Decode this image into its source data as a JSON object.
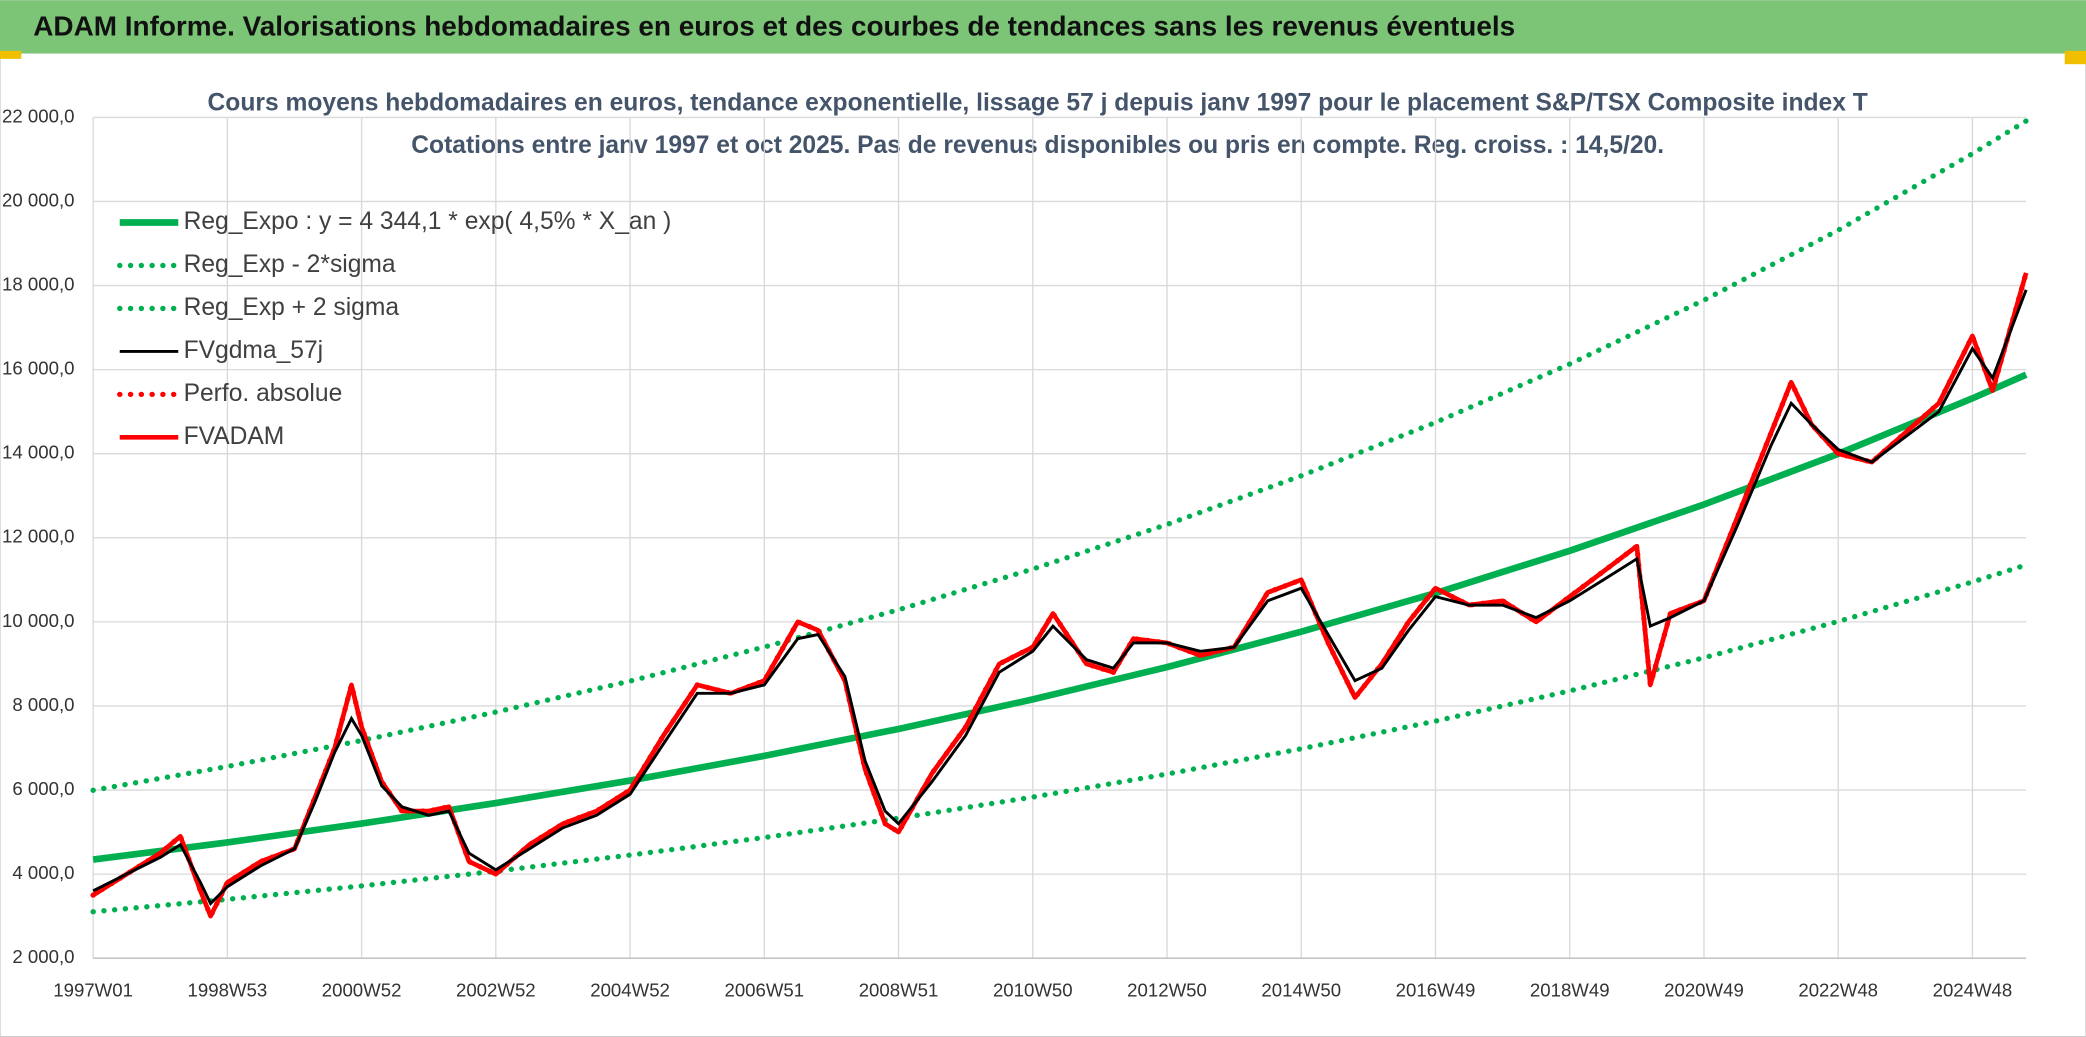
{
  "chart_data": {
    "type": "line",
    "header": "ADAM Informe. Valorisations hebdomadaires en euros et des courbes de tendances sans les revenus éventuels",
    "title": "Cours moyens hebdomadaires en euros, tendance exponentielle, lissage 57 j depuis janv 1997 pour le placement S&P/TSX Composite index T",
    "subtitle": "Cotations entre janv 1997 et oct 2025. Pas de revenus disponibles ou pris en compte. Reg. croiss. : 14,5/20.",
    "x": [
      1997.0,
      1997.5,
      1998.0,
      1998.3,
      1998.6,
      1998.75,
      1999.0,
      1999.5,
      2000.0,
      2000.3,
      2000.6,
      2000.85,
      2001.0,
      2001.3,
      2001.6,
      2002.0,
      2002.3,
      2002.6,
      2003.0,
      2003.5,
      2004.0,
      2004.5,
      2005.0,
      2005.5,
      2006.0,
      2006.5,
      2007.0,
      2007.5,
      2007.8,
      2008.2,
      2008.5,
      2008.8,
      2009.0,
      2009.5,
      2010.0,
      2010.5,
      2011.0,
      2011.3,
      2011.8,
      2012.2,
      2012.5,
      2013.0,
      2013.5,
      2014.0,
      2014.5,
      2015.0,
      2015.4,
      2015.8,
      2016.2,
      2016.6,
      2017.0,
      2017.5,
      2018.0,
      2018.5,
      2019.0,
      2019.5,
      2020.0,
      2020.2,
      2020.5,
      2021.0,
      2021.5,
      2022.0,
      2022.3,
      2022.6,
      2023.0,
      2023.5,
      2024.0,
      2024.5,
      2025.0,
      2025.3,
      2025.8
    ],
    "series": [
      {
        "name": "Reg_Expo : y = 4 344,1 * exp( 4,5% *  X_an )",
        "color": "#00b050",
        "style": "solid",
        "x": [
          1997,
          1999,
          2001,
          2003,
          2005,
          2007,
          2009,
          2011,
          2013,
          2015,
          2017,
          2019,
          2021,
          2023,
          2025,
          2025.8
        ],
        "values": [
          4344,
          4753,
          5201,
          5691,
          6226,
          6813,
          7454,
          8156,
          8925,
          9765,
          10685,
          11691,
          12792,
          13997,
          15315,
          15879
        ]
      },
      {
        "name": "Reg_Exp - 2*sigma",
        "color": "#00b050",
        "style": "dotted",
        "x": [
          1997,
          1999,
          2001,
          2003,
          2005,
          2007,
          2009,
          2011,
          2013,
          2015,
          2017,
          2019,
          2021,
          2023,
          2025,
          2025.8
        ],
        "values": [
          3106,
          3398,
          3719,
          4069,
          4452,
          4871,
          5330,
          5832,
          6381,
          6982,
          7640,
          8359,
          9146,
          10008,
          10950,
          11353
        ]
      },
      {
        "name": "Reg_Exp + 2 sigma",
        "color": "#00b050",
        "style": "dotted",
        "x": [
          1997,
          1999,
          2001,
          2003,
          2005,
          2007,
          2009,
          2011,
          2013,
          2015,
          2017,
          2019,
          2021,
          2023,
          2025,
          2025.8
        ],
        "values": [
          5995,
          6559,
          7177,
          7854,
          8592,
          9402,
          10287,
          11255,
          12317,
          13476,
          14745,
          16134,
          17653,
          19316,
          21135,
          21913
        ]
      },
      {
        "name": "FVgdma_57j",
        "color": "#000000",
        "style": "thin",
        "values": [
          3600,
          4000,
          4400,
          4700,
          3800,
          3300,
          3700,
          4200,
          4600,
          5700,
          6900,
          7700,
          7300,
          6100,
          5600,
          5400,
          5500,
          4500,
          4100,
          4600,
          5100,
          5400,
          5900,
          7100,
          8300,
          8300,
          8500,
          9600,
          9700,
          8700,
          6700,
          5500,
          5200,
          6200,
          7300,
          8800,
          9300,
          9900,
          9100,
          8900,
          9500,
          9500,
          9300,
          9400,
          10500,
          10800,
          9700,
          8600,
          8900,
          9800,
          10600,
          10400,
          10400,
          10100,
          10500,
          11000,
          11500,
          9900,
          10100,
          10500,
          12300,
          14200,
          15200,
          14700,
          14100,
          13800,
          14400,
          15000,
          16500,
          15800,
          17900
        ]
      },
      {
        "name": "Perfo. absolue",
        "color": "#ff0000",
        "style": "dotted",
        "values": [
          3500,
          4000,
          4500,
          4900,
          3600,
          3000,
          3800,
          4300,
          4600,
          5800,
          7000,
          8500,
          7500,
          6200,
          5500,
          5500,
          5600,
          4300,
          4000,
          4700,
          5200,
          5500,
          6000,
          7300,
          8500,
          8300,
          8600,
          10000,
          9800,
          8600,
          6500,
          5200,
          5000,
          6400,
          7500,
          9000,
          9400,
          10200,
          9000,
          8800,
          9600,
          9500,
          9200,
          9400,
          10700,
          11000,
          9500,
          8200,
          9000,
          10000,
          10800,
          10400,
          10500,
          10000,
          10600,
          11200,
          11800,
          8500,
          10200,
          10500,
          12500,
          14500,
          15700,
          14700,
          14000,
          13800,
          14500,
          15200,
          16800,
          15500,
          18300
        ]
      },
      {
        "name": "FVADAM",
        "color": "#ff0000",
        "style": "thick",
        "values": [
          3500,
          4000,
          4500,
          4900,
          3600,
          3000,
          3800,
          4300,
          4600,
          5800,
          7000,
          8500,
          7500,
          6200,
          5500,
          5500,
          5600,
          4300,
          4000,
          4700,
          5200,
          5500,
          6000,
          7300,
          8500,
          8300,
          8600,
          10000,
          9800,
          8600,
          6500,
          5200,
          5000,
          6400,
          7500,
          9000,
          9400,
          10200,
          9000,
          8800,
          9600,
          9500,
          9200,
          9400,
          10700,
          11000,
          9500,
          8200,
          9000,
          10000,
          10800,
          10400,
          10500,
          10000,
          10600,
          11200,
          11800,
          8500,
          10200,
          10500,
          12500,
          14500,
          15700,
          14700,
          14000,
          13800,
          14500,
          15200,
          16800,
          15500,
          18300
        ]
      }
    ],
    "xlim": [
      1997,
      2025.8
    ],
    "xticks": [
      {
        "value": 1997,
        "label": "1997W01"
      },
      {
        "value": 1999,
        "label": "1998W53"
      },
      {
        "value": 2001,
        "label": "2000W52"
      },
      {
        "value": 2003,
        "label": "2002W52"
      },
      {
        "value": 2005,
        "label": "2004W52"
      },
      {
        "value": 2007,
        "label": "2006W51"
      },
      {
        "value": 2009,
        "label": "2008W51"
      },
      {
        "value": 2011,
        "label": "2010W50"
      },
      {
        "value": 2013,
        "label": "2012W50"
      },
      {
        "value": 2015,
        "label": "2014W50"
      },
      {
        "value": 2017,
        "label": "2016W49"
      },
      {
        "value": 2019,
        "label": "2018W49"
      },
      {
        "value": 2021,
        "label": "2020W49"
      },
      {
        "value": 2023,
        "label": "2022W48"
      },
      {
        "value": 2025,
        "label": "2024W48"
      }
    ],
    "ylim": [
      2000,
      22000
    ],
    "yticks": [
      {
        "value": 2000,
        "label": "2 000,0"
      },
      {
        "value": 4000,
        "label": "4 000,0"
      },
      {
        "value": 6000,
        "label": "6 000,0"
      },
      {
        "value": 8000,
        "label": "8 000,0"
      },
      {
        "value": 10000,
        "label": "10 000,0"
      },
      {
        "value": 12000,
        "label": "12 000,0"
      },
      {
        "value": 14000,
        "label": "14 000,0"
      },
      {
        "value": 16000,
        "label": "16 000,0"
      },
      {
        "value": 18000,
        "label": "18 000,0"
      },
      {
        "value": 20000,
        "label": "20 000,0"
      },
      {
        "value": 22000,
        "label": "22 000,0"
      }
    ],
    "grid": true
  }
}
